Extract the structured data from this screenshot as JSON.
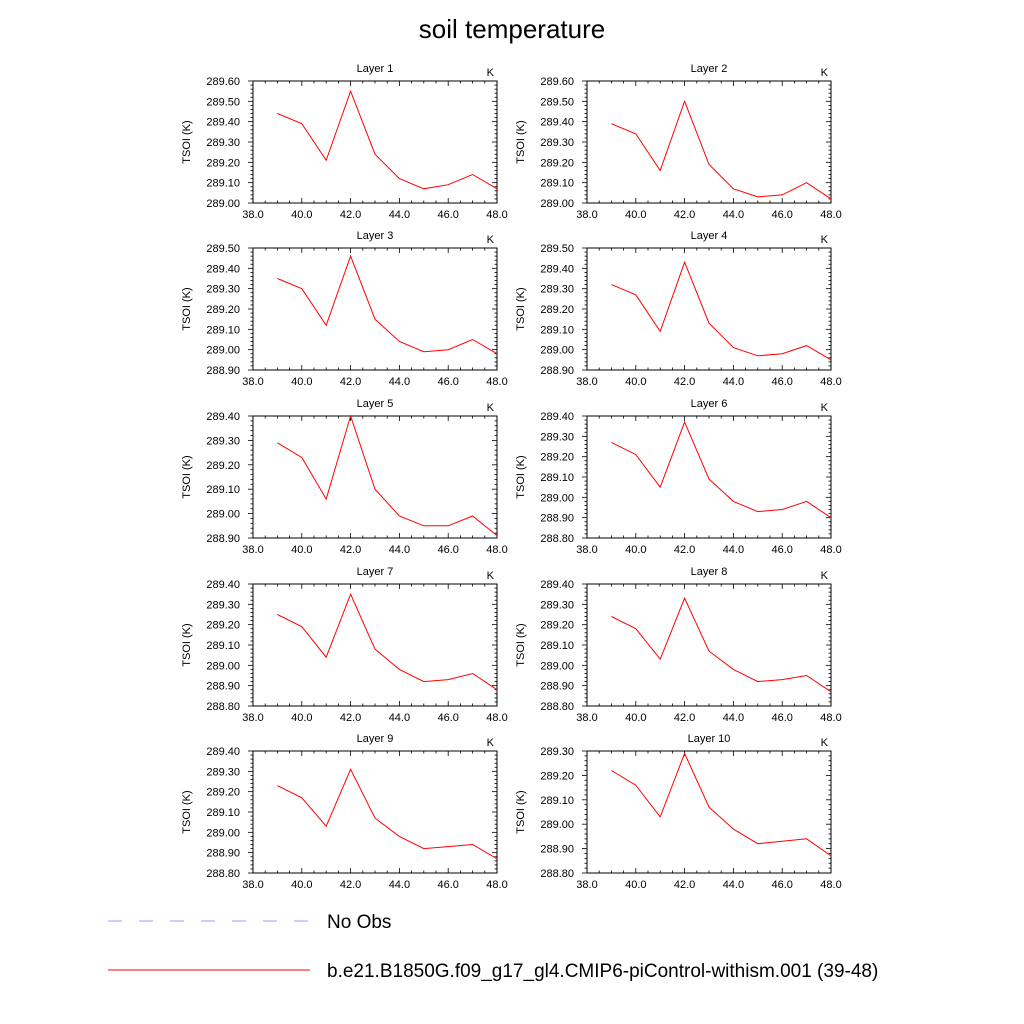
{
  "title": "soil temperature",
  "units": "K",
  "ylabel": "TSOI  (K)",
  "legend": [
    {
      "label": "No Obs",
      "color": "#9999ff",
      "dash": true
    },
    {
      "label": "b.e21.B1850G.f09_g17_gl4.CMIP6-piControl-withism.001 (39-48)",
      "color": "#ff0000",
      "dash": false
    }
  ],
  "line_color": "#ff0000",
  "chart_data": [
    {
      "type": "line",
      "title": "Layer 1",
      "ylabel": "TSOI  (K)",
      "x": [
        39,
        40,
        41,
        42,
        43,
        44,
        45,
        46,
        47,
        48
      ],
      "xlim": [
        38,
        48
      ],
      "xticks": [
        "38.0",
        "40.0",
        "42.0",
        "44.0",
        "46.0",
        "48.0"
      ],
      "ylim": [
        289.0,
        289.6
      ],
      "yticks": [
        "289.00",
        "289.10",
        "289.20",
        "289.30",
        "289.40",
        "289.50",
        "289.60"
      ],
      "series": [
        {
          "values": [
            289.44,
            289.39,
            289.21,
            289.55,
            289.24,
            289.12,
            289.07,
            289.09,
            289.14,
            289.07
          ]
        }
      ]
    },
    {
      "type": "line",
      "title": "Layer 2",
      "ylabel": "TSOI  (K)",
      "x": [
        39,
        40,
        41,
        42,
        43,
        44,
        45,
        46,
        47,
        48
      ],
      "xlim": [
        38,
        48
      ],
      "xticks": [
        "38.0",
        "40.0",
        "42.0",
        "44.0",
        "46.0",
        "48.0"
      ],
      "ylim": [
        289.0,
        289.6
      ],
      "yticks": [
        "289.00",
        "289.10",
        "289.20",
        "289.30",
        "289.40",
        "289.50",
        "289.60"
      ],
      "series": [
        {
          "values": [
            289.39,
            289.34,
            289.16,
            289.5,
            289.19,
            289.07,
            289.03,
            289.04,
            289.1,
            289.02
          ]
        }
      ]
    },
    {
      "type": "line",
      "title": "Layer 3",
      "ylabel": "TSOI  (K)",
      "x": [
        39,
        40,
        41,
        42,
        43,
        44,
        45,
        46,
        47,
        48
      ],
      "xlim": [
        38,
        48
      ],
      "xticks": [
        "38.0",
        "40.0",
        "42.0",
        "44.0",
        "46.0",
        "48.0"
      ],
      "ylim": [
        288.9,
        289.5
      ],
      "yticks": [
        "288.90",
        "289.00",
        "289.10",
        "289.20",
        "289.30",
        "289.40",
        "289.50"
      ],
      "series": [
        {
          "values": [
            289.35,
            289.3,
            289.12,
            289.46,
            289.15,
            289.04,
            288.99,
            289.0,
            289.05,
            288.98
          ]
        }
      ]
    },
    {
      "type": "line",
      "title": "Layer 4",
      "ylabel": "TSOI  (K)",
      "x": [
        39,
        40,
        41,
        42,
        43,
        44,
        45,
        46,
        47,
        48
      ],
      "xlim": [
        38,
        48
      ],
      "xticks": [
        "38.0",
        "40.0",
        "42.0",
        "44.0",
        "46.0",
        "48.0"
      ],
      "ylim": [
        288.9,
        289.5
      ],
      "yticks": [
        "288.90",
        "289.00",
        "289.10",
        "289.20",
        "289.30",
        "289.40",
        "289.50"
      ],
      "series": [
        {
          "values": [
            289.32,
            289.27,
            289.09,
            289.43,
            289.13,
            289.01,
            288.97,
            288.98,
            289.02,
            288.95
          ]
        }
      ]
    },
    {
      "type": "line",
      "title": "Layer 5",
      "ylabel": "TSOI  (K)",
      "x": [
        39,
        40,
        41,
        42,
        43,
        44,
        45,
        46,
        47,
        48
      ],
      "xlim": [
        38,
        48
      ],
      "xticks": [
        "38.0",
        "40.0",
        "42.0",
        "44.0",
        "46.0",
        "48.0"
      ],
      "ylim": [
        288.9,
        289.4
      ],
      "yticks": [
        "288.90",
        "289.00",
        "289.10",
        "289.20",
        "289.30",
        "289.40"
      ],
      "series": [
        {
          "values": [
            289.29,
            289.23,
            289.06,
            289.4,
            289.1,
            288.99,
            288.95,
            288.95,
            288.99,
            288.91
          ]
        }
      ]
    },
    {
      "type": "line",
      "title": "Layer 6",
      "ylabel": "TSOI  (K)",
      "x": [
        39,
        40,
        41,
        42,
        43,
        44,
        45,
        46,
        47,
        48
      ],
      "xlim": [
        38,
        48
      ],
      "xticks": [
        "38.0",
        "40.0",
        "42.0",
        "44.0",
        "46.0",
        "48.0"
      ],
      "ylim": [
        288.8,
        289.4
      ],
      "yticks": [
        "288.80",
        "288.90",
        "289.00",
        "289.10",
        "289.20",
        "289.30",
        "289.40"
      ],
      "series": [
        {
          "values": [
            289.27,
            289.21,
            289.05,
            289.37,
            289.09,
            288.98,
            288.93,
            288.94,
            288.98,
            288.9
          ]
        }
      ]
    },
    {
      "type": "line",
      "title": "Layer 7",
      "ylabel": "TSOI  (K)",
      "x": [
        39,
        40,
        41,
        42,
        43,
        44,
        45,
        46,
        47,
        48
      ],
      "xlim": [
        38,
        48
      ],
      "xticks": [
        "38.0",
        "40.0",
        "42.0",
        "44.0",
        "46.0",
        "48.0"
      ],
      "ylim": [
        288.8,
        289.4
      ],
      "yticks": [
        "288.80",
        "288.90",
        "289.00",
        "289.10",
        "289.20",
        "289.30",
        "289.40"
      ],
      "series": [
        {
          "values": [
            289.25,
            289.19,
            289.04,
            289.35,
            289.08,
            288.98,
            288.92,
            288.93,
            288.96,
            288.88
          ]
        }
      ]
    },
    {
      "type": "line",
      "title": "Layer 8",
      "ylabel": "TSOI  (K)",
      "x": [
        39,
        40,
        41,
        42,
        43,
        44,
        45,
        46,
        47,
        48
      ],
      "xlim": [
        38,
        48
      ],
      "xticks": [
        "38.0",
        "40.0",
        "42.0",
        "44.0",
        "46.0",
        "48.0"
      ],
      "ylim": [
        288.8,
        289.4
      ],
      "yticks": [
        "288.80",
        "288.90",
        "289.00",
        "289.10",
        "289.20",
        "289.30",
        "289.40"
      ],
      "series": [
        {
          "values": [
            289.24,
            289.18,
            289.03,
            289.33,
            289.07,
            288.98,
            288.92,
            288.93,
            288.95,
            288.87
          ]
        }
      ]
    },
    {
      "type": "line",
      "title": "Layer 9",
      "ylabel": "TSOI  (K)",
      "x": [
        39,
        40,
        41,
        42,
        43,
        44,
        45,
        46,
        47,
        48
      ],
      "xlim": [
        38,
        48
      ],
      "xticks": [
        "38.0",
        "40.0",
        "42.0",
        "44.0",
        "46.0",
        "48.0"
      ],
      "ylim": [
        288.8,
        289.4
      ],
      "yticks": [
        "288.80",
        "288.90",
        "289.00",
        "289.10",
        "289.20",
        "289.30",
        "289.40"
      ],
      "series": [
        {
          "values": [
            289.23,
            289.17,
            289.03,
            289.31,
            289.07,
            288.98,
            288.92,
            288.93,
            288.94,
            288.87
          ]
        }
      ]
    },
    {
      "type": "line",
      "title": "Layer 10",
      "ylabel": "TSOI  (K)",
      "x": [
        39,
        40,
        41,
        42,
        43,
        44,
        45,
        46,
        47,
        48
      ],
      "xlim": [
        38,
        48
      ],
      "xticks": [
        "38.0",
        "40.0",
        "42.0",
        "44.0",
        "46.0",
        "48.0"
      ],
      "ylim": [
        288.8,
        289.3
      ],
      "yticks": [
        "288.80",
        "288.90",
        "289.00",
        "289.10",
        "289.20",
        "289.30"
      ],
      "series": [
        {
          "values": [
            289.22,
            289.16,
            289.03,
            289.29,
            289.07,
            288.98,
            288.92,
            288.93,
            288.94,
            288.87
          ]
        }
      ]
    }
  ]
}
